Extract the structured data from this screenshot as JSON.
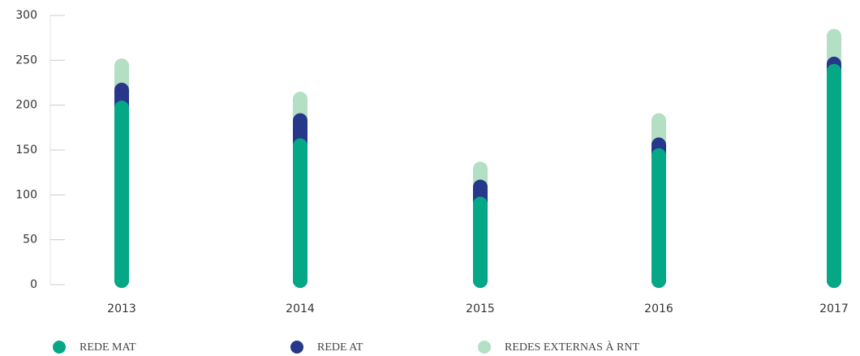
{
  "chart_data": {
    "type": "bar",
    "stacked": true,
    "categories": [
      "2013",
      "2014",
      "2015",
      "2016",
      "2017"
    ],
    "series": [
      {
        "name": "REDE MAT",
        "color": "#05a886",
        "values": [
          205,
          163,
          98,
          152,
          246
        ]
      },
      {
        "name": "REDE AT",
        "color": "#27378a",
        "values": [
          20,
          28,
          19,
          12,
          8
        ]
      },
      {
        "name": "REDES EXTERNAS À RNT",
        "color": "#b3dfc4",
        "values": [
          27,
          24,
          20,
          27,
          31
        ]
      }
    ],
    "ylim": [
      0,
      300
    ],
    "yticks": [
      0,
      50,
      100,
      150,
      200,
      250,
      300
    ]
  }
}
